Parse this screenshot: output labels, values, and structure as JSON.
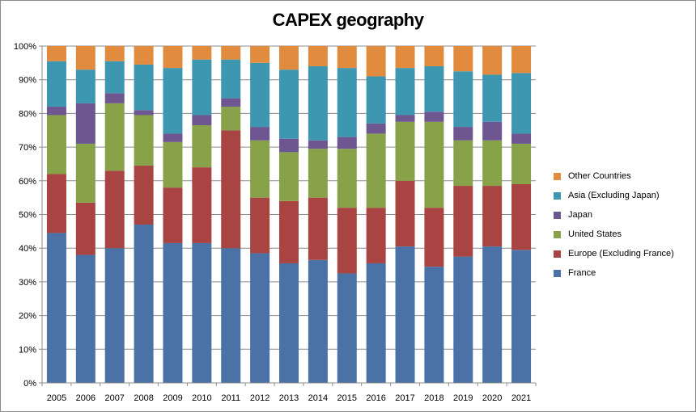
{
  "chart_data": {
    "type": "bar",
    "stacked": true,
    "percent": true,
    "title": "CAPEX geography",
    "xlabel": "",
    "ylabel": "",
    "ylim": [
      0,
      100
    ],
    "y_ticks": [
      "0%",
      "10%",
      "20%",
      "30%",
      "40%",
      "50%",
      "60%",
      "70%",
      "80%",
      "90%",
      "100%"
    ],
    "grid": true,
    "legend_position": "right",
    "categories": [
      "2005",
      "2006",
      "2007",
      "2008",
      "2009",
      "2010",
      "2011",
      "2012",
      "2013",
      "2014",
      "2015",
      "2016",
      "2017",
      "2018",
      "2019",
      "2020",
      "2021"
    ],
    "series": [
      {
        "name": "France",
        "color": "#4a72a6",
        "values": [
          44.5,
          38,
          40,
          47,
          41.5,
          41.5,
          40,
          38.5,
          35.5,
          36.5,
          32.5,
          35.5,
          40.5,
          34.5,
          37.5,
          40.5,
          39.5
        ]
      },
      {
        "name": "Europe (Excluding France)",
        "color": "#a84442",
        "values": [
          17.5,
          15.5,
          23,
          17.5,
          16.5,
          22.5,
          35,
          16.5,
          18.5,
          18.5,
          19.5,
          16.5,
          19.5,
          17.5,
          21,
          18,
          19.5
        ]
      },
      {
        "name": "United States",
        "color": "#88a24a",
        "values": [
          17.5,
          17.5,
          20,
          15,
          13.5,
          12.5,
          7,
          17,
          14.5,
          14.5,
          17.5,
          22,
          17.5,
          25.5,
          13.5,
          13.5,
          12
        ]
      },
      {
        "name": "Japan",
        "color": "#6e5690",
        "values": [
          2.5,
          12,
          3,
          1.5,
          2.5,
          3,
          2.5,
          4,
          4,
          2.5,
          3.5,
          3,
          2,
          3,
          4,
          5.5,
          3
        ]
      },
      {
        "name": "Asia (Excluding Japan)",
        "color": "#3e97b1",
        "values": [
          13.5,
          10,
          9.5,
          13.5,
          19.5,
          16.5,
          11.5,
          19,
          20.5,
          22,
          20.5,
          14,
          14,
          13.5,
          16.5,
          14,
          18
        ]
      },
      {
        "name": "Other Countries",
        "color": "#e18b3e",
        "values": [
          4.5,
          7,
          4.5,
          5.5,
          6.5,
          4,
          4,
          5,
          7,
          6,
          6.5,
          9,
          6.5,
          6,
          7.5,
          8.5,
          8
        ]
      }
    ]
  }
}
